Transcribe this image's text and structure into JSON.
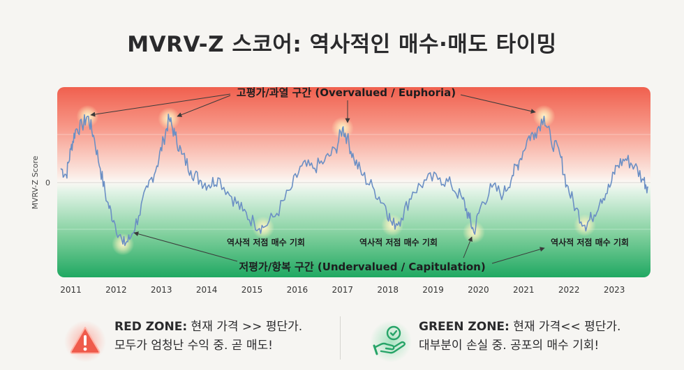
{
  "title": "MVRV-Z 스코어: 역사적인 매수·매도 타이밍",
  "chart_data": {
    "type": "line",
    "ylabel": "MVRV-Z Score",
    "y_ticks": [
      "0"
    ],
    "x_ticks": [
      "2011",
      "2012",
      "2013",
      "2014",
      "2015",
      "2016",
      "2017",
      "2018",
      "2019",
      "2020",
      "2021",
      "2022",
      "2023"
    ],
    "ylim": [
      -1.8,
      2.0
    ],
    "series": [
      {
        "values": [
          [
            2010.83,
            0.3
          ],
          [
            2010.95,
            0.15
          ],
          [
            2011.05,
            0.7
          ],
          [
            2011.15,
            1.1
          ],
          [
            2011.3,
            1.2
          ],
          [
            2011.42,
            1.4
          ],
          [
            2011.55,
            1.0
          ],
          [
            2011.7,
            0.3
          ],
          [
            2011.85,
            -0.4
          ],
          [
            2012.0,
            -0.8
          ],
          [
            2012.2,
            -1.3
          ],
          [
            2012.35,
            -1.2
          ],
          [
            2012.55,
            -0.7
          ],
          [
            2012.75,
            -0.1
          ],
          [
            2012.95,
            0.35
          ],
          [
            2013.1,
            0.9
          ],
          [
            2013.22,
            1.35
          ],
          [
            2013.35,
            1.0
          ],
          [
            2013.5,
            0.6
          ],
          [
            2013.7,
            0.25
          ],
          [
            2013.9,
            0.05
          ],
          [
            2014.1,
            -0.05
          ],
          [
            2014.3,
            0.1
          ],
          [
            2014.6,
            -0.3
          ],
          [
            2014.85,
            -0.6
          ],
          [
            2015.1,
            -0.85
          ],
          [
            2015.3,
            -0.95
          ],
          [
            2015.6,
            -0.65
          ],
          [
            2015.9,
            -0.15
          ],
          [
            2016.15,
            0.35
          ],
          [
            2016.4,
            0.3
          ],
          [
            2016.65,
            0.45
          ],
          [
            2016.9,
            0.7
          ],
          [
            2017.05,
            1.15
          ],
          [
            2017.15,
            0.95
          ],
          [
            2017.3,
            0.5
          ],
          [
            2017.5,
            0.15
          ],
          [
            2017.75,
            -0.15
          ],
          [
            2018.0,
            -0.5
          ],
          [
            2018.15,
            -0.9
          ],
          [
            2018.35,
            -0.75
          ],
          [
            2018.6,
            -0.2
          ],
          [
            2018.9,
            0.05
          ],
          [
            2019.2,
            0.1
          ],
          [
            2019.45,
            -0.05
          ],
          [
            2019.7,
            -0.35
          ],
          [
            2019.85,
            -0.75
          ],
          [
            2019.95,
            -1.05
          ],
          [
            2020.1,
            -0.5
          ],
          [
            2020.35,
            -0.1
          ],
          [
            2020.6,
            -0.25
          ],
          [
            2020.8,
            0.15
          ],
          [
            2020.95,
            0.45
          ],
          [
            2021.15,
            0.95
          ],
          [
            2021.3,
            1.05
          ],
          [
            2021.5,
            1.4
          ],
          [
            2021.65,
            0.9
          ],
          [
            2021.85,
            0.6
          ],
          [
            2022.0,
            -0.05
          ],
          [
            2022.2,
            -0.55
          ],
          [
            2022.4,
            -0.9
          ],
          [
            2022.55,
            -0.75
          ],
          [
            2022.75,
            -0.35
          ],
          [
            2022.95,
            -0.1
          ],
          [
            2023.1,
            0.35
          ],
          [
            2023.3,
            0.5
          ],
          [
            2023.5,
            0.35
          ],
          [
            2023.7,
            0.05
          ],
          [
            2023.8,
            -0.1
          ]
        ]
      }
    ],
    "zones": {
      "overvalued_label": "고평가/과열 구간 (Overvalued / Euphoria)",
      "undervalued_label": "저평가/항복 구간 (Undervalued / Capitulation)",
      "opportunity_label": "역사적 저점 매수 기회",
      "colors": {
        "red": "#f26c5b",
        "green": "#2db06b",
        "line": "#6b8fc4"
      }
    }
  },
  "legend": {
    "red": {
      "head": "RED ZONE:",
      "line1": " 현재 가격 >> 평단가.",
      "line2": "모두가 엄청난 수익 중. 곧 매도!",
      "color": "#ef5b4c",
      "icon": "warning-triangle-icon"
    },
    "green": {
      "head": "GREEN ZONE:",
      "line1": " 현재 가격<< 평단가.",
      "line2": "대부분이 손실 중. 공포의 매수 기회!",
      "color": "#27a468",
      "icon": "hand-coin-icon"
    }
  }
}
